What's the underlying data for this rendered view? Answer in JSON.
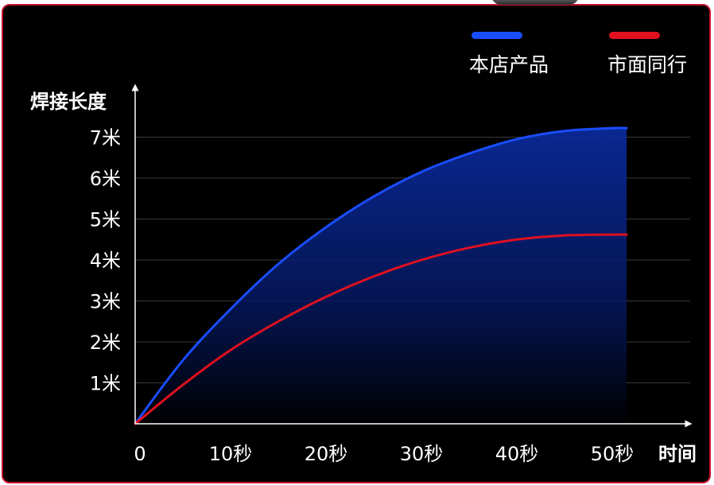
{
  "chart_data": {
    "type": "line",
    "ylabel": "焊接长度",
    "xlabel": "时间",
    "x_ticks": [
      {
        "value": 0,
        "label": "0"
      },
      {
        "value": 10,
        "label": "10秒"
      },
      {
        "value": 20,
        "label": "20秒"
      },
      {
        "value": 30,
        "label": "30秒"
      },
      {
        "value": 40,
        "label": "40秒"
      },
      {
        "value": 50,
        "label": "50秒"
      }
    ],
    "y_ticks": [
      {
        "value": 1,
        "label": "1米"
      },
      {
        "value": 2,
        "label": "2米"
      },
      {
        "value": 3,
        "label": "3米"
      },
      {
        "value": 4,
        "label": "4米"
      },
      {
        "value": 5,
        "label": "5米"
      },
      {
        "value": 6,
        "label": "6米"
      },
      {
        "value": 7,
        "label": "7米"
      }
    ],
    "xlim": [
      0,
      58
    ],
    "ylim": [
      0,
      7.2
    ],
    "grid": true,
    "legend_position": "top-right",
    "series": [
      {
        "name": "本店产品",
        "color": "#1a4dff",
        "area_fill": true,
        "x": [
          0,
          5,
          10,
          15,
          20,
          25,
          30,
          35,
          40,
          45,
          50,
          51.5
        ],
        "y": [
          0,
          1.55,
          2.8,
          3.9,
          4.8,
          5.55,
          6.15,
          6.6,
          6.95,
          7.15,
          7.22,
          7.22
        ]
      },
      {
        "name": "市面同行",
        "color": "#e01020",
        "area_fill": false,
        "x": [
          0,
          5,
          10,
          15,
          20,
          25,
          30,
          35,
          40,
          45,
          50,
          51.5
        ],
        "y": [
          0,
          0.95,
          1.8,
          2.5,
          3.1,
          3.6,
          4.0,
          4.3,
          4.5,
          4.6,
          4.62,
          4.62
        ]
      }
    ]
  }
}
